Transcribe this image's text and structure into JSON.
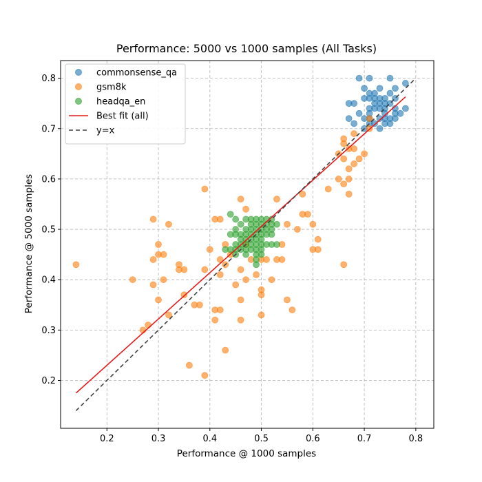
{
  "chart_data": {
    "type": "scatter",
    "title": "Performance: 5000 vs 1000 samples (All Tasks)",
    "xlabel": "Performance @ 1000 samples",
    "ylabel": "Performance @ 5000 samples",
    "xlim": [
      0.11,
      0.835
    ],
    "ylim": [
      0.105,
      0.835
    ],
    "xticks": [
      0.2,
      0.3,
      0.4,
      0.5,
      0.6,
      0.7,
      0.8
    ],
    "yticks": [
      0.2,
      0.3,
      0.4,
      0.5,
      0.6,
      0.7,
      0.8
    ],
    "xtick_labels": [
      "0.2",
      "0.3",
      "0.4",
      "0.5",
      "0.6",
      "0.7",
      "0.8"
    ],
    "ytick_labels": [
      "0.2",
      "0.3",
      "0.4",
      "0.5",
      "0.6",
      "0.7",
      "0.8"
    ],
    "grid": true,
    "legend_position": "top-left",
    "series": [
      {
        "name": "commonsense_qa",
        "color": "#1f77b4",
        "points": [
          [
            0.69,
            0.8
          ],
          [
            0.71,
            0.8
          ],
          [
            0.75,
            0.8
          ],
          [
            0.7,
            0.78
          ],
          [
            0.73,
            0.78
          ],
          [
            0.76,
            0.78
          ],
          [
            0.78,
            0.79
          ],
          [
            0.71,
            0.77
          ],
          [
            0.72,
            0.77
          ],
          [
            0.75,
            0.77
          ],
          [
            0.68,
            0.75
          ],
          [
            0.67,
            0.75
          ],
          [
            0.7,
            0.76
          ],
          [
            0.71,
            0.76
          ],
          [
            0.72,
            0.76
          ],
          [
            0.73,
            0.76
          ],
          [
            0.74,
            0.76
          ],
          [
            0.72,
            0.75
          ],
          [
            0.73,
            0.75
          ],
          [
            0.74,
            0.75
          ],
          [
            0.75,
            0.75
          ],
          [
            0.76,
            0.76
          ],
          [
            0.69,
            0.73
          ],
          [
            0.71,
            0.74
          ],
          [
            0.72,
            0.74
          ],
          [
            0.73,
            0.74
          ],
          [
            0.74,
            0.74
          ],
          [
            0.76,
            0.74
          ],
          [
            0.78,
            0.74
          ],
          [
            0.71,
            0.73
          ],
          [
            0.74,
            0.73
          ],
          [
            0.76,
            0.73
          ],
          [
            0.77,
            0.73
          ],
          [
            0.67,
            0.72
          ],
          [
            0.7,
            0.72
          ],
          [
            0.71,
            0.72
          ],
          [
            0.73,
            0.72
          ],
          [
            0.74,
            0.72
          ],
          [
            0.75,
            0.72
          ],
          [
            0.76,
            0.72
          ],
          [
            0.68,
            0.71
          ],
          [
            0.72,
            0.71
          ],
          [
            0.74,
            0.71
          ],
          [
            0.75,
            0.71
          ],
          [
            0.7,
            0.7
          ],
          [
            0.73,
            0.7
          ],
          [
            0.71,
            0.71
          ]
        ]
      },
      {
        "name": "gsm8k",
        "color": "#ff7f0e",
        "points": [
          [
            0.14,
            0.43
          ],
          [
            0.25,
            0.4
          ],
          [
            0.27,
            0.3
          ],
          [
            0.28,
            0.31
          ],
          [
            0.29,
            0.52
          ],
          [
            0.29,
            0.44
          ],
          [
            0.29,
            0.39
          ],
          [
            0.3,
            0.47
          ],
          [
            0.3,
            0.45
          ],
          [
            0.3,
            0.36
          ],
          [
            0.31,
            0.45
          ],
          [
            0.31,
            0.4
          ],
          [
            0.32,
            0.51
          ],
          [
            0.32,
            0.33
          ],
          [
            0.34,
            0.43
          ],
          [
            0.34,
            0.42
          ],
          [
            0.35,
            0.42
          ],
          [
            0.35,
            0.37
          ],
          [
            0.36,
            0.23
          ],
          [
            0.37,
            0.35
          ],
          [
            0.38,
            0.35
          ],
          [
            0.39,
            0.58
          ],
          [
            0.39,
            0.42
          ],
          [
            0.39,
            0.21
          ],
          [
            0.4,
            0.46
          ],
          [
            0.41,
            0.52
          ],
          [
            0.41,
            0.34
          ],
          [
            0.41,
            0.32
          ],
          [
            0.42,
            0.52
          ],
          [
            0.42,
            0.44
          ],
          [
            0.42,
            0.41
          ],
          [
            0.42,
            0.34
          ],
          [
            0.43,
            0.47
          ],
          [
            0.43,
            0.43
          ],
          [
            0.43,
            0.26
          ],
          [
            0.44,
            0.45
          ],
          [
            0.45,
            0.39
          ],
          [
            0.46,
            0.56
          ],
          [
            0.46,
            0.42
          ],
          [
            0.46,
            0.36
          ],
          [
            0.46,
            0.32
          ],
          [
            0.47,
            0.54
          ],
          [
            0.47,
            0.47
          ],
          [
            0.47,
            0.4
          ],
          [
            0.48,
            0.44
          ],
          [
            0.49,
            0.41
          ],
          [
            0.5,
            0.44
          ],
          [
            0.5,
            0.38
          ],
          [
            0.5,
            0.37
          ],
          [
            0.5,
            0.33
          ],
          [
            0.51,
            0.44
          ],
          [
            0.52,
            0.4
          ],
          [
            0.53,
            0.56
          ],
          [
            0.53,
            0.44
          ],
          [
            0.54,
            0.47
          ],
          [
            0.54,
            0.44
          ],
          [
            0.55,
            0.51
          ],
          [
            0.55,
            0.36
          ],
          [
            0.56,
            0.34
          ],
          [
            0.57,
            0.5
          ],
          [
            0.58,
            0.57
          ],
          [
            0.58,
            0.53
          ],
          [
            0.59,
            0.53
          ],
          [
            0.6,
            0.51
          ],
          [
            0.6,
            0.46
          ],
          [
            0.61,
            0.48
          ],
          [
            0.61,
            0.46
          ],
          [
            0.63,
            0.58
          ],
          [
            0.65,
            0.65
          ],
          [
            0.65,
            0.6
          ],
          [
            0.66,
            0.68
          ],
          [
            0.66,
            0.67
          ],
          [
            0.66,
            0.64
          ],
          [
            0.66,
            0.59
          ],
          [
            0.66,
            0.43
          ],
          [
            0.67,
            0.66
          ],
          [
            0.67,
            0.62
          ],
          [
            0.67,
            0.6
          ],
          [
            0.67,
            0.57
          ],
          [
            0.68,
            0.69
          ],
          [
            0.68,
            0.66
          ],
          [
            0.68,
            0.63
          ],
          [
            0.69,
            0.64
          ],
          [
            0.7,
            0.65
          ],
          [
            0.71,
            0.72
          ],
          [
            0.71,
            0.7
          ]
        ]
      },
      {
        "name": "headqa_en",
        "color": "#2ca02c",
        "points": [
          [
            0.43,
            0.46
          ],
          [
            0.44,
            0.46
          ],
          [
            0.44,
            0.53
          ],
          [
            0.44,
            0.49
          ],
          [
            0.45,
            0.52
          ],
          [
            0.45,
            0.5
          ],
          [
            0.45,
            0.49
          ],
          [
            0.45,
            0.47
          ],
          [
            0.45,
            0.46
          ],
          [
            0.45,
            0.45
          ],
          [
            0.46,
            0.51
          ],
          [
            0.46,
            0.49
          ],
          [
            0.46,
            0.48
          ],
          [
            0.46,
            0.47
          ],
          [
            0.46,
            0.46
          ],
          [
            0.47,
            0.52
          ],
          [
            0.47,
            0.5
          ],
          [
            0.47,
            0.49
          ],
          [
            0.47,
            0.48
          ],
          [
            0.47,
            0.47
          ],
          [
            0.47,
            0.46
          ],
          [
            0.47,
            0.45
          ],
          [
            0.48,
            0.52
          ],
          [
            0.48,
            0.51
          ],
          [
            0.48,
            0.5
          ],
          [
            0.48,
            0.49
          ],
          [
            0.48,
            0.48
          ],
          [
            0.48,
            0.47
          ],
          [
            0.48,
            0.46
          ],
          [
            0.49,
            0.52
          ],
          [
            0.49,
            0.51
          ],
          [
            0.49,
            0.5
          ],
          [
            0.49,
            0.49
          ],
          [
            0.49,
            0.48
          ],
          [
            0.49,
            0.47
          ],
          [
            0.49,
            0.46
          ],
          [
            0.49,
            0.45
          ],
          [
            0.49,
            0.44
          ],
          [
            0.49,
            0.43
          ],
          [
            0.5,
            0.52
          ],
          [
            0.5,
            0.51
          ],
          [
            0.5,
            0.5
          ],
          [
            0.5,
            0.49
          ],
          [
            0.5,
            0.48
          ],
          [
            0.5,
            0.47
          ],
          [
            0.5,
            0.46
          ],
          [
            0.5,
            0.45
          ],
          [
            0.51,
            0.52
          ],
          [
            0.51,
            0.51
          ],
          [
            0.51,
            0.5
          ],
          [
            0.51,
            0.49
          ],
          [
            0.51,
            0.47
          ],
          [
            0.52,
            0.52
          ],
          [
            0.52,
            0.51
          ],
          [
            0.52,
            0.5
          ],
          [
            0.52,
            0.49
          ],
          [
            0.52,
            0.47
          ],
          [
            0.53,
            0.51
          ],
          [
            0.53,
            0.47
          ]
        ]
      }
    ],
    "lines": [
      {
        "name": "Best fit (all)",
        "color": "#e41a1c",
        "style": "solid",
        "x": [
          0.14,
          0.78
        ],
        "y": [
          0.175,
          0.763
        ]
      },
      {
        "name": "y=x",
        "color": "#404040",
        "style": "dashed",
        "x": [
          0.14,
          0.8
        ],
        "y": [
          0.14,
          0.8
        ]
      }
    ]
  }
}
